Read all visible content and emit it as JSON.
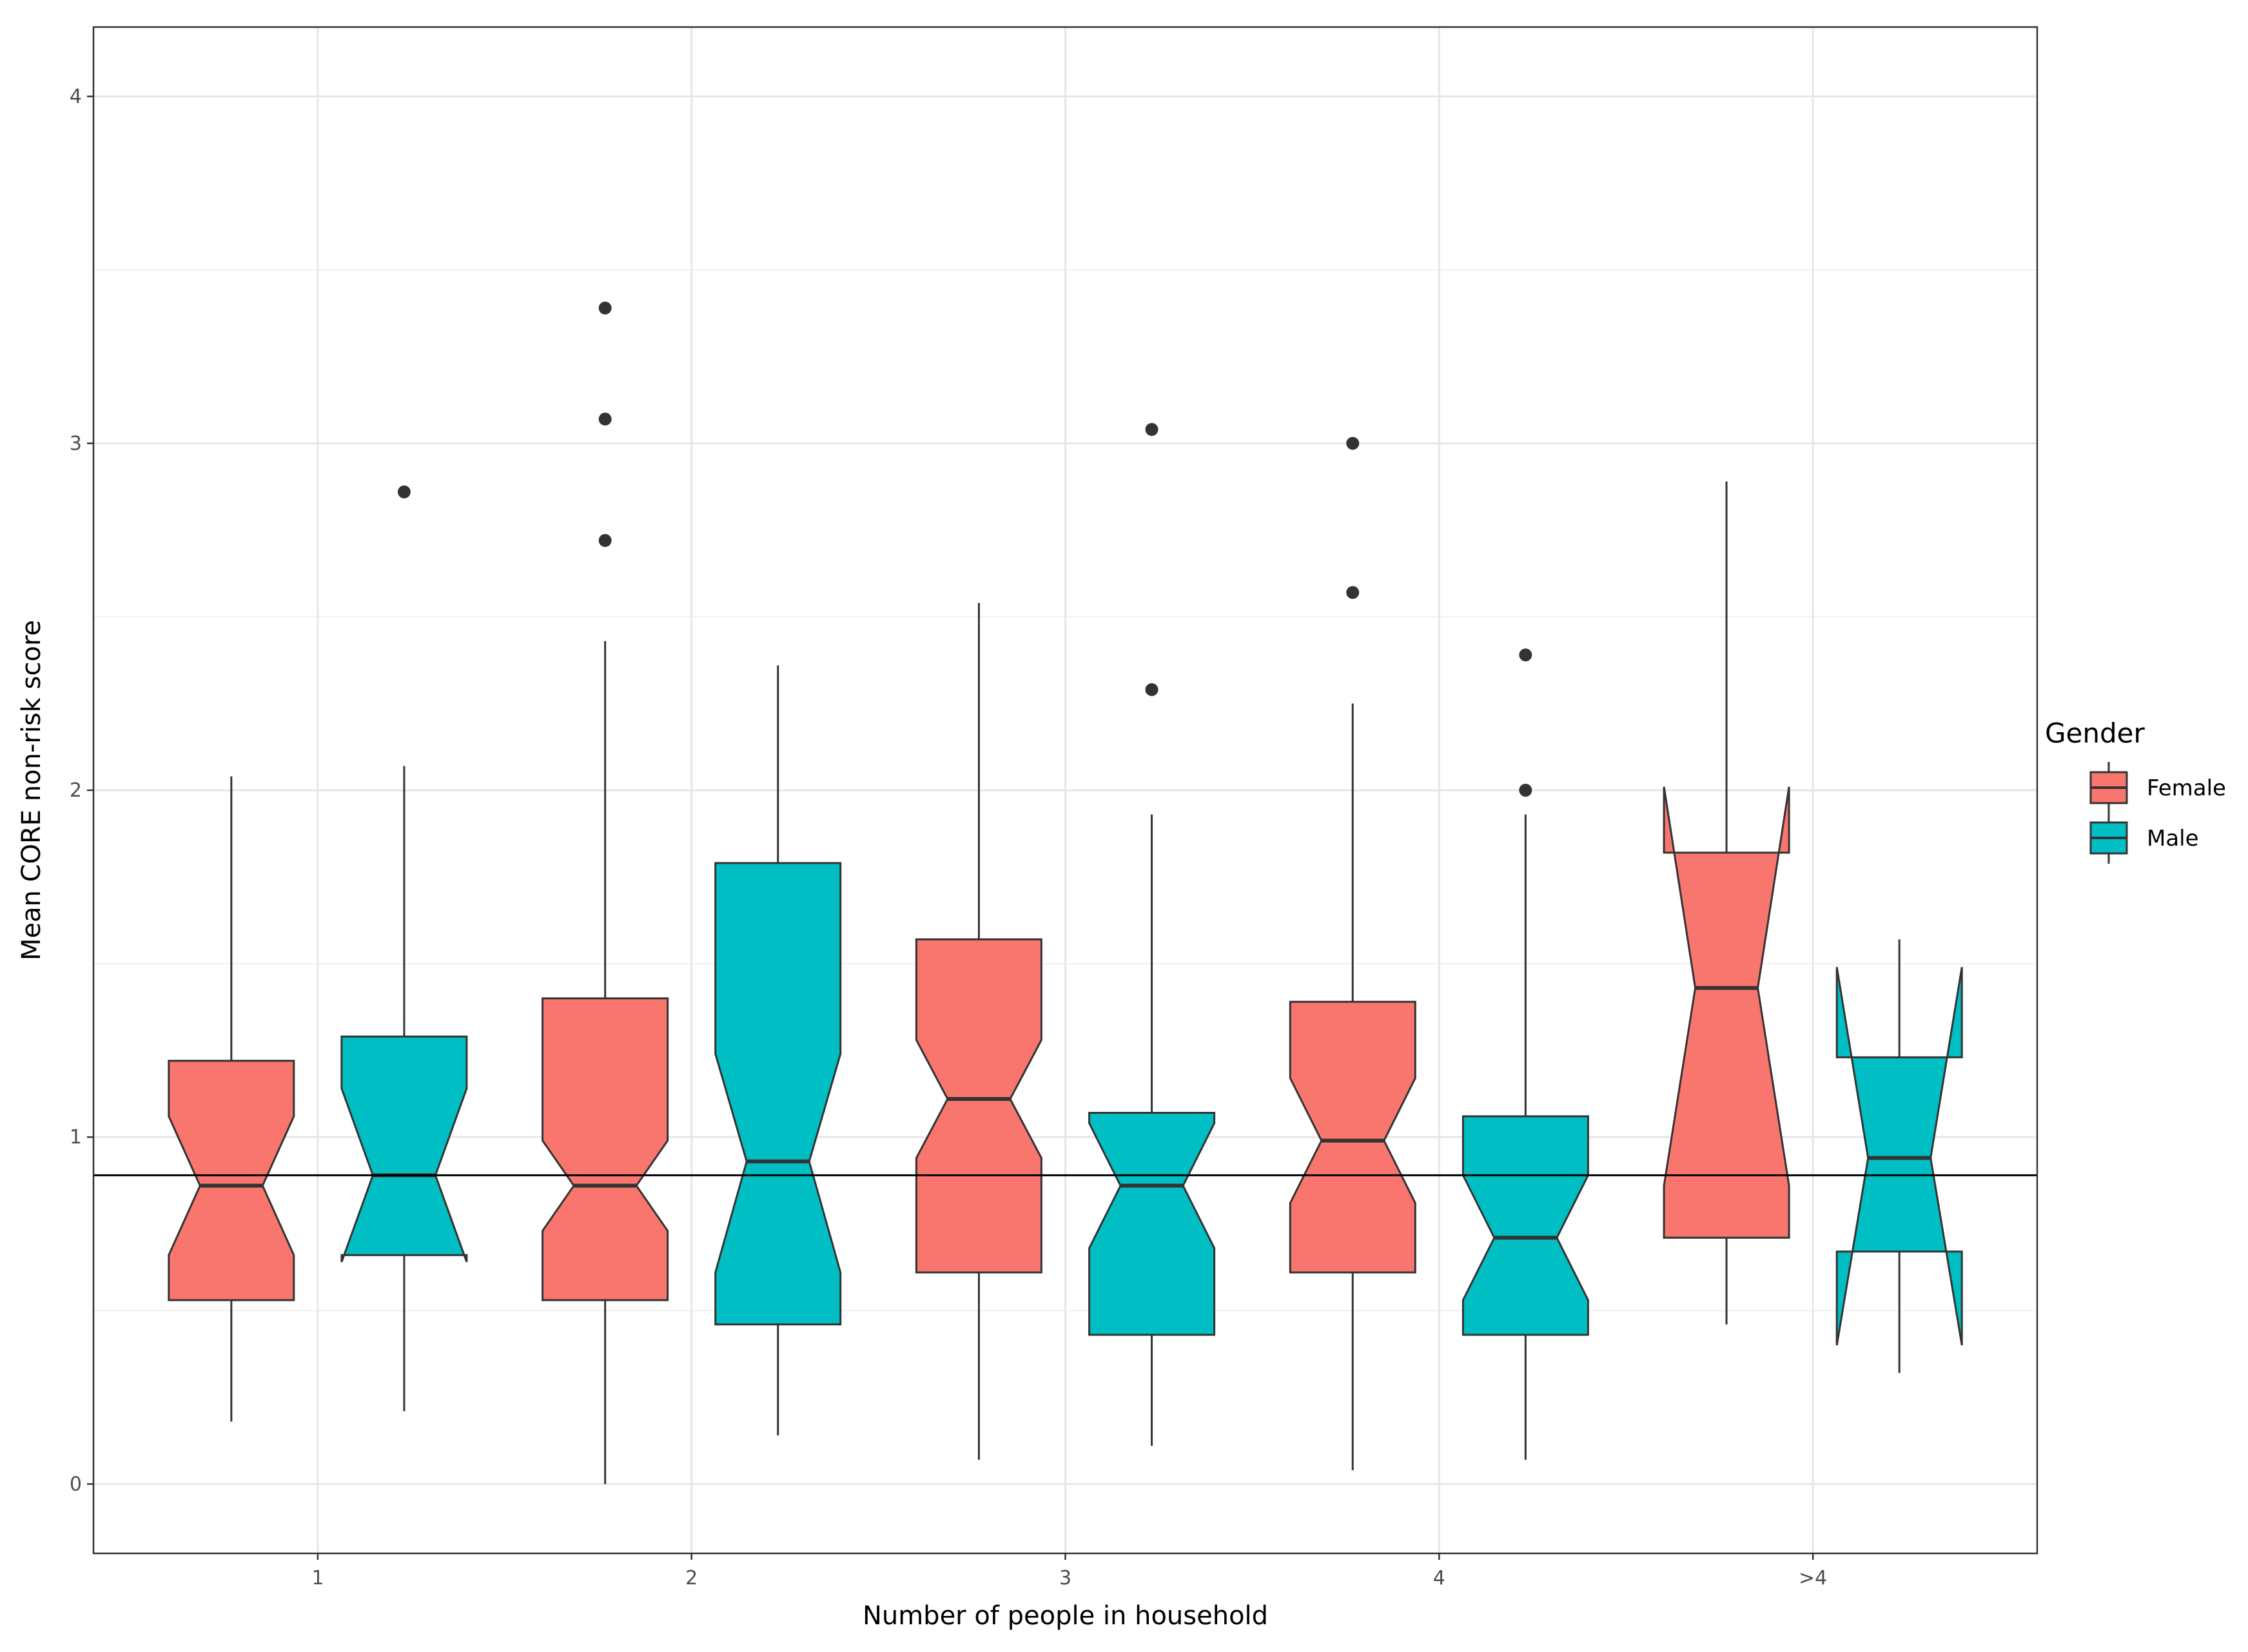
{
  "chart_data": {
    "type": "boxplot",
    "notched": true,
    "title": "",
    "xlabel": "Number of people in household",
    "ylabel": "Mean CORE non-risk score",
    "ylim": [
      -0.2,
      4.2
    ],
    "y_ticks": [
      "0",
      "1",
      "2",
      "3",
      "4"
    ],
    "categories": [
      "1",
      "2",
      "3",
      "4",
      ">4"
    ],
    "reference_line_y": 0.89,
    "legend": {
      "title": "Gender",
      "position": "right",
      "entries": [
        {
          "label": "Female",
          "color": "#F8766D"
        },
        {
          "label": "Male",
          "color": "#00BFC4"
        }
      ]
    },
    "series": [
      {
        "name": "Female",
        "color": "#F8766D",
        "boxes": [
          {
            "category": "1",
            "whisker_low": 0.18,
            "q1": 0.53,
            "median": 0.86,
            "q3": 1.22,
            "whisker_high": 2.04,
            "notch_low": 0.66,
            "notch_high": 1.06,
            "outliers": []
          },
          {
            "category": "2",
            "whisker_low": 0.0,
            "q1": 0.53,
            "median": 0.86,
            "q3": 1.4,
            "whisker_high": 2.43,
            "notch_low": 0.73,
            "notch_high": 0.99,
            "outliers": [
              2.72,
              3.07,
              3.39
            ]
          },
          {
            "category": "3",
            "whisker_low": 0.07,
            "q1": 0.61,
            "median": 1.11,
            "q3": 1.57,
            "whisker_high": 2.54,
            "notch_low": 0.94,
            "notch_high": 1.28,
            "outliers": []
          },
          {
            "category": "4",
            "whisker_low": 0.04,
            "q1": 0.61,
            "median": 0.99,
            "q3": 1.39,
            "whisker_high": 2.25,
            "notch_low": 0.81,
            "notch_high": 1.17,
            "outliers": [
              2.57,
              3.0
            ]
          },
          {
            "category": ">4",
            "whisker_low": 0.46,
            "q1": 0.71,
            "median": 1.43,
            "q3": 1.82,
            "whisker_high": 2.89,
            "notch_low": 0.86,
            "notch_high": 2.01,
            "outliers": []
          }
        ]
      },
      {
        "name": "Male",
        "color": "#00BFC4",
        "boxes": [
          {
            "category": "1",
            "whisker_low": 0.21,
            "q1": 0.66,
            "median": 0.89,
            "q3": 1.29,
            "whisker_high": 2.07,
            "notch_low": 0.64,
            "notch_high": 1.14,
            "outliers": [
              2.86
            ]
          },
          {
            "category": "2",
            "whisker_low": 0.14,
            "q1": 0.46,
            "median": 0.93,
            "q3": 1.79,
            "whisker_high": 2.36,
            "notch_low": 0.61,
            "notch_high": 1.24,
            "outliers": []
          },
          {
            "category": "3",
            "whisker_low": 0.11,
            "q1": 0.43,
            "median": 0.86,
            "q3": 1.07,
            "whisker_high": 1.93,
            "notch_low": 0.68,
            "notch_high": 1.04,
            "outliers": [
              2.29,
              3.04
            ]
          },
          {
            "category": "4",
            "whisker_low": 0.07,
            "q1": 0.43,
            "median": 0.71,
            "q3": 1.06,
            "whisker_high": 1.93,
            "notch_low": 0.53,
            "notch_high": 0.89,
            "outliers": [
              2.0,
              2.39
            ]
          },
          {
            "category": ">4",
            "whisker_low": 0.32,
            "q1": 0.67,
            "median": 0.94,
            "q3": 1.23,
            "whisker_high": 1.57,
            "notch_low": 0.4,
            "notch_high": 1.49,
            "outliers": []
          }
        ]
      }
    ]
  }
}
